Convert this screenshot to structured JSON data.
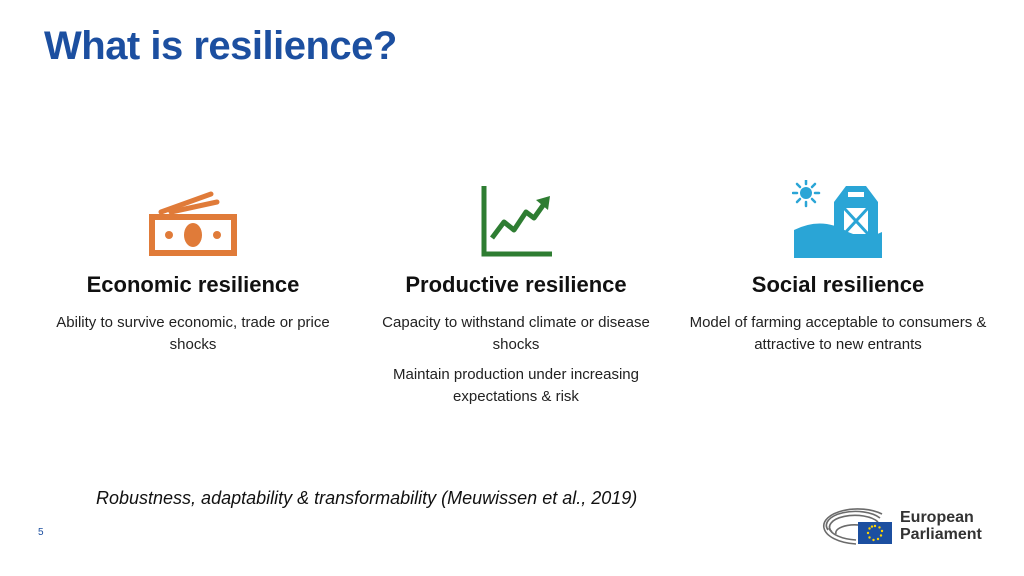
{
  "title": "What is resilience?",
  "columns": [
    {
      "icon": "money-icon",
      "color": "#e07b39",
      "heading": "Economic resilience",
      "paragraphs": [
        "Ability to survive economic, trade or price shocks"
      ]
    },
    {
      "icon": "growth-chart-icon",
      "color": "#2e7d32",
      "heading": "Productive resilience",
      "paragraphs": [
        "Capacity to withstand climate or disease shocks",
        "Maintain production under increasing expectations & risk"
      ]
    },
    {
      "icon": "barn-sun-icon",
      "color": "#2aa5d6",
      "heading": "Social resilience",
      "paragraphs": [
        "Model of farming acceptable to consumers & attractive to new entrants"
      ]
    }
  ],
  "footnote": "Robustness, adaptability & transformability (Meuwissen et al., 2019)",
  "page_number": "5",
  "logo": {
    "line1": "European",
    "line2": "Parliament",
    "flag_color": "#1c4fa0"
  }
}
